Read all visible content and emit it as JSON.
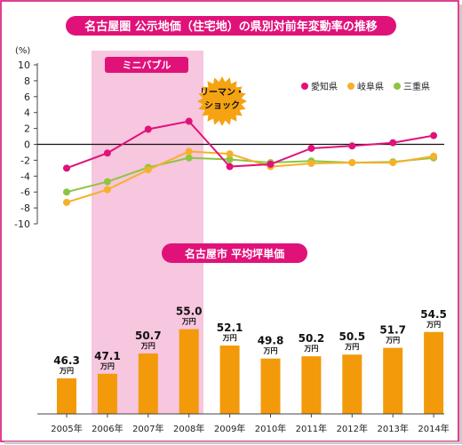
{
  "title": "名古屋圏 公示地価（住宅地）の県別対前年変動率の推移",
  "y_unit": "(%)",
  "band_label": "ミニバブル",
  "burst_line1": "リーマン・",
  "burst_line2": "ショック",
  "bar_title": "名古屋市 平均坪単価",
  "bar_unit": "万円",
  "colors": {
    "title_bg": "#e0127a",
    "band": "#f7c6df",
    "band_label_bg": "#e0127a",
    "burst": "#f5a312",
    "bar": "#f39a0a",
    "aichi": "#e0127a",
    "gifu": "#f6b02a",
    "mie": "#8cc63f"
  },
  "chart_data": [
    {
      "type": "line",
      "title": "名古屋圏 公示地価（住宅地）の県別対前年変動率の推移",
      "ylabel": "(%)",
      "ylim": [
        -10,
        10
      ],
      "yticks": [
        10,
        8,
        6,
        4,
        2,
        0,
        -2,
        -4,
        -6,
        -8,
        -10
      ],
      "x": [
        "2005年",
        "2006年",
        "2007年",
        "2008年",
        "2009年",
        "2010年",
        "2011年",
        "2012年",
        "2013年",
        "2014年"
      ],
      "legend_position": "top-right",
      "series": [
        {
          "name": "愛知県",
          "values": [
            -3.0,
            -1.1,
            1.9,
            2.9,
            -2.8,
            -2.5,
            -0.5,
            -0.2,
            0.2,
            1.1
          ]
        },
        {
          "name": "岐阜県",
          "values": [
            -7.3,
            -5.7,
            -3.2,
            -0.9,
            -1.2,
            -2.8,
            -2.4,
            -2.3,
            -2.3,
            -1.5
          ]
        },
        {
          "name": "三重県",
          "values": [
            -6.0,
            -4.7,
            -2.9,
            -1.7,
            -1.9,
            -2.3,
            -2.1,
            -2.3,
            -2.2,
            -1.7
          ]
        }
      ],
      "annotations": [
        "ミニバブル",
        "リーマン・ショック"
      ]
    },
    {
      "type": "bar",
      "title": "名古屋市 平均坪単価",
      "unit": "万円",
      "categories": [
        "2005年",
        "2006年",
        "2007年",
        "2008年",
        "2009年",
        "2010年",
        "2011年",
        "2012年",
        "2013年",
        "2014年"
      ],
      "values": [
        46.3,
        47.1,
        50.7,
        55.0,
        52.1,
        49.8,
        50.2,
        50.5,
        51.7,
        54.5
      ],
      "value_labels": [
        "46.3",
        "47.1",
        "50.7",
        "55.0",
        "52.1",
        "49.8",
        "50.2",
        "50.5",
        "51.7",
        "54.5"
      ]
    }
  ]
}
